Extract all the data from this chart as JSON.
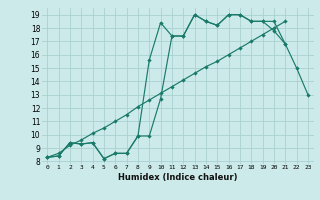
{
  "title": "",
  "xlabel": "Humidex (Indice chaleur)",
  "bg_color": "#cceaea",
  "grid_color": "#aad0d0",
  "line_color": "#1a7a6a",
  "xlim": [
    -0.5,
    23.5
  ],
  "ylim": [
    7.8,
    19.5
  ],
  "xticks": [
    0,
    1,
    2,
    3,
    4,
    5,
    6,
    7,
    8,
    9,
    10,
    11,
    12,
    13,
    14,
    15,
    16,
    17,
    18,
    19,
    20,
    21,
    22,
    23
  ],
  "yticks": [
    8,
    9,
    10,
    11,
    12,
    13,
    14,
    15,
    16,
    17,
    18,
    19
  ],
  "line1_x": [
    0,
    1,
    2,
    3,
    4,
    5,
    6,
    7,
    8,
    9,
    10,
    11,
    12,
    13,
    14,
    15,
    16,
    17,
    18,
    19,
    20,
    21,
    22,
    23
  ],
  "line1_y": [
    8.3,
    8.4,
    9.4,
    9.3,
    9.4,
    8.2,
    8.6,
    8.6,
    9.9,
    9.9,
    12.7,
    17.4,
    17.4,
    19.0,
    18.5,
    18.2,
    19.0,
    19.0,
    18.5,
    18.5,
    18.5,
    16.8,
    15.0,
    13.0
  ],
  "line2_x": [
    0,
    1,
    2,
    3,
    4,
    5,
    6,
    7,
    8,
    9,
    10,
    11,
    12,
    13,
    14,
    15,
    16,
    17,
    18,
    19,
    20,
    21
  ],
  "line2_y": [
    8.3,
    8.4,
    9.4,
    9.3,
    9.4,
    8.2,
    8.6,
    8.6,
    9.9,
    15.6,
    18.4,
    17.4,
    17.4,
    19.0,
    18.5,
    18.2,
    19.0,
    19.0,
    18.5,
    18.5,
    17.8,
    16.8
  ],
  "line3_x": [
    0,
    1,
    2,
    3,
    4,
    5,
    6,
    7,
    8,
    9,
    10,
    11,
    12,
    13,
    14,
    15,
    16,
    17,
    18,
    19,
    20,
    21
  ],
  "line3_y": [
    8.3,
    8.6,
    9.2,
    9.6,
    10.1,
    10.5,
    11.0,
    11.5,
    12.1,
    12.6,
    13.1,
    13.6,
    14.1,
    14.6,
    15.1,
    15.5,
    16.0,
    16.5,
    17.0,
    17.5,
    18.0,
    18.5
  ]
}
